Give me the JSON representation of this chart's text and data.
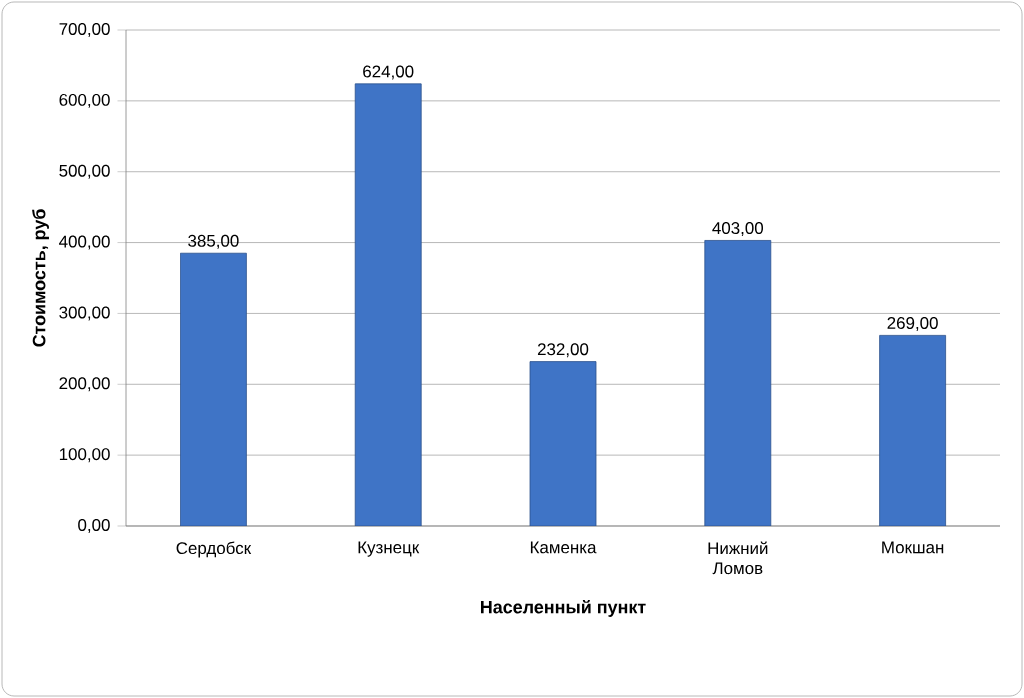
{
  "chart_data": {
    "type": "bar",
    "xlabel": "Населенный пункт",
    "ylabel": "Стоимость, руб",
    "categories": [
      "Сердобск",
      "Кузнецк",
      "Каменка",
      "Нижний Ломов",
      "Мокшан"
    ],
    "values": [
      385,
      624,
      232,
      403,
      269
    ],
    "value_labels": [
      "385,00",
      "624,00",
      "232,00",
      "403,00",
      "269,00"
    ],
    "color": "#3f74c6",
    "ylim": [
      0,
      700
    ],
    "yticks": [
      {
        "value": 0,
        "label": "0,00"
      },
      {
        "value": 100,
        "label": "100,00"
      },
      {
        "value": 200,
        "label": "200,00"
      },
      {
        "value": 300,
        "label": "300,00"
      },
      {
        "value": 400,
        "label": "400,00"
      },
      {
        "value": 500,
        "label": "500,00"
      },
      {
        "value": 600,
        "label": "600,00"
      },
      {
        "value": 700,
        "label": "700,00"
      }
    ],
    "grid": "y"
  }
}
